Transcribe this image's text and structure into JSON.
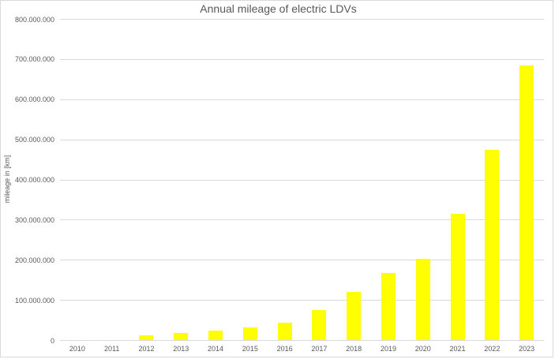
{
  "chart_data": {
    "type": "bar",
    "title": "Annual mileage of electric LDVs",
    "xlabel": "",
    "ylabel": "mileage in [km]",
    "ylim": [
      0,
      800000000
    ],
    "yticks": [
      0,
      100000000,
      200000000,
      300000000,
      400000000,
      500000000,
      600000000,
      700000000,
      800000000
    ],
    "ytick_labels": [
      "0",
      "100.000.000",
      "200.000.000",
      "300.000.000",
      "400.000.000",
      "500.000.000",
      "600.000.000",
      "700.000.000",
      "800.000.000"
    ],
    "categories": [
      "2010",
      "2011",
      "2012",
      "2013",
      "2014",
      "2015",
      "2016",
      "2017",
      "2018",
      "2019",
      "2020",
      "2021",
      "2022",
      "2023"
    ],
    "values": [
      0,
      0,
      12000000,
      18000000,
      24000000,
      31000000,
      43000000,
      75000000,
      120000000,
      168000000,
      203000000,
      314000000,
      473000000,
      684000000
    ],
    "grid": true,
    "legend": null,
    "bar_color": "#ffff00"
  }
}
